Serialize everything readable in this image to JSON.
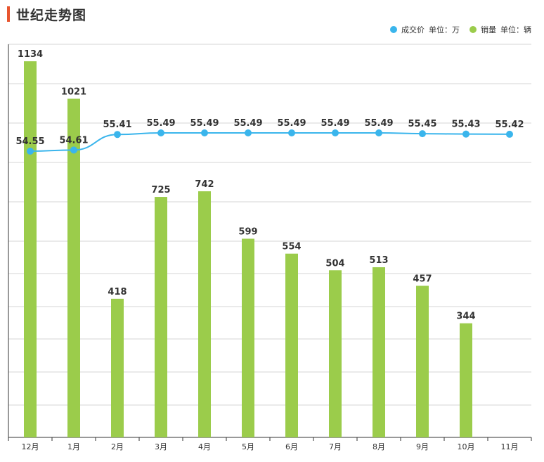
{
  "header": {
    "title": "世纪走势图"
  },
  "legend": {
    "price": {
      "name": "成交价",
      "unit": "单位：万",
      "color": "#3ab5ec"
    },
    "sales": {
      "name": "销量",
      "unit": "单位：辆",
      "color": "#9bcc4b"
    }
  },
  "chart_data": {
    "type": "bar",
    "title": "世纪走势图",
    "categories": [
      "12月",
      "1月",
      "2月",
      "3月",
      "4月",
      "5月",
      "6月",
      "7月",
      "8月",
      "9月",
      "10月",
      "11月"
    ],
    "series": [
      {
        "name": "成交价",
        "kind": "line",
        "unit": "万",
        "color": "#3ab5ec",
        "values": [
          54.55,
          54.61,
          55.41,
          55.49,
          55.49,
          55.49,
          55.49,
          55.49,
          55.49,
          55.45,
          55.43,
          55.42
        ]
      },
      {
        "name": "销量",
        "kind": "bar",
        "unit": "辆",
        "color": "#9bcc4b",
        "values": [
          1134,
          1021,
          418,
          725,
          742,
          599,
          554,
          504,
          513,
          457,
          344,
          null
        ]
      }
    ],
    "sales_ylim": [
      0,
      1200
    ],
    "grid": true,
    "legend_position": "top-right"
  }
}
